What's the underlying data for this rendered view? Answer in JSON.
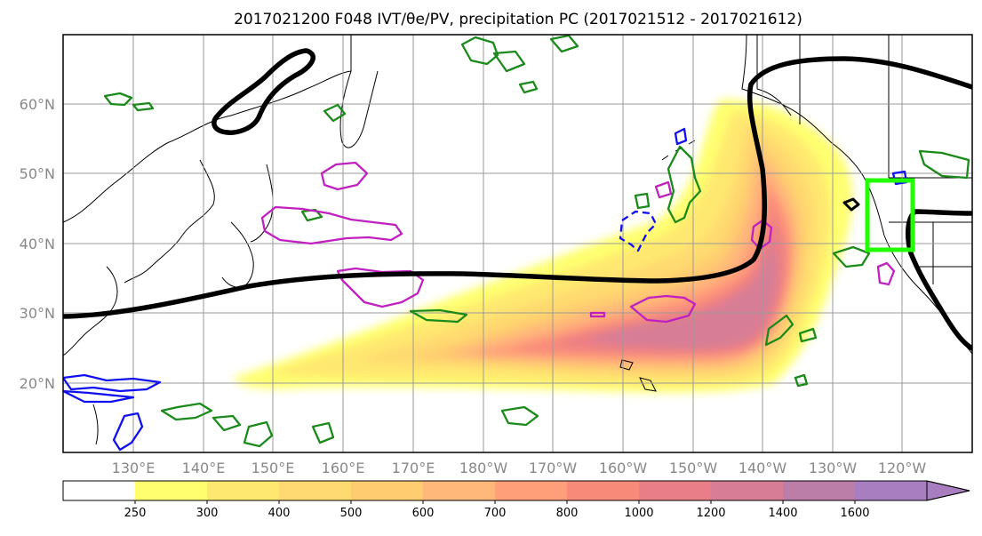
{
  "title": "2017021200 F048 IVT/θe/PV, precipitation PC (2017021512 - 2017021612)",
  "lat_labels": [
    "60°N",
    "50°N",
    "40°N",
    "30°N",
    "20°N"
  ],
  "lon_labels": [
    "130°E",
    "140°E",
    "150°E",
    "160°E",
    "170°E",
    "180°W",
    "170°W",
    "160°W",
    "150°W",
    "140°W",
    "130°W",
    "120°W"
  ],
  "colorbar": {
    "labels": [
      "250",
      "300",
      "400",
      "500",
      "600",
      "700",
      "800",
      "1000",
      "1200",
      "1400",
      "1600"
    ],
    "colors": [
      "#ffff70",
      "#ffe870",
      "#ffda70",
      "#ffcc70",
      "#ffb77a",
      "#ff9f7a",
      "#f88a7a",
      "#ea7e86",
      "#d77e96",
      "#bb7ea8",
      "#a87ec0"
    ],
    "extend": "max"
  },
  "colors": {
    "pv_contour": "#000000",
    "theta_e_green": "#1a8a1a",
    "negative_blue": "#1010ee",
    "positive_magenta": "#c020c0",
    "target_box": "#22ff00",
    "gridline": "#9a9a9a",
    "tick_label": "#888888"
  }
}
